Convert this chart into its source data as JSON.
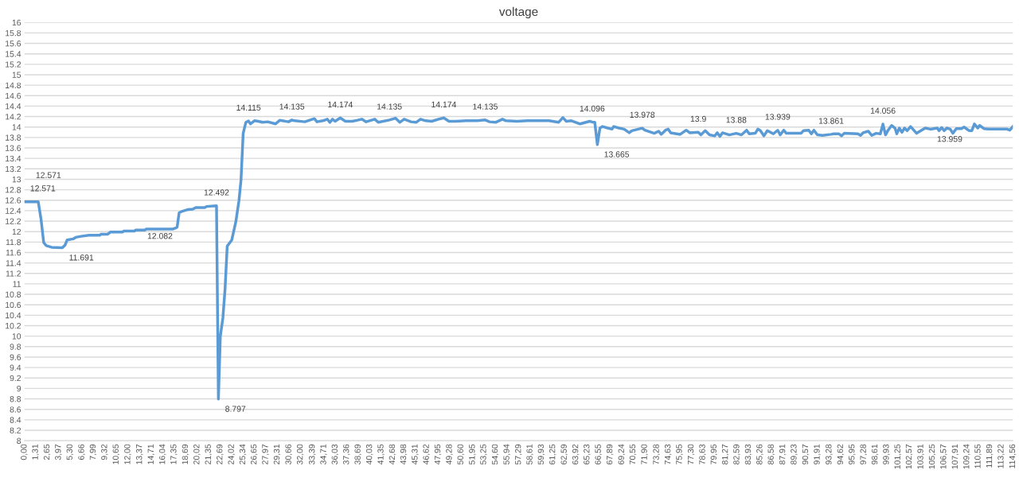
{
  "chart_data": {
    "type": "line",
    "title": "voltage",
    "x": [
      0,
      0.66,
      1.31,
      1.6,
      1.92,
      2.23,
      2.53,
      3.15,
      4.39,
      4.7,
      4.95,
      5.63,
      5.94,
      6.56,
      7.48,
      8.72,
      8.88,
      9.65,
      9.95,
      11.35,
      11.5,
      12.74,
      12.9,
      13.98,
      14.13,
      17.22,
      17.53,
      17.69,
      17.93,
      18.3,
      18.9,
      19.5,
      19.85,
      20.9,
      21.1,
      22.26,
      22.48,
      22.7,
      23.0,
      23.25,
      23.5,
      24.03,
      24.5,
      24.86,
      25.1,
      25.35,
      25.66,
      25.97,
      26.2,
      26.65,
      27.1,
      27.6,
      28.2,
      29.1,
      29.6,
      30.6,
      31.0,
      31.3,
      32.5,
      33.6,
      33.9,
      34.6,
      35.1,
      35.4,
      35.7,
      36.0,
      36.6,
      37.2,
      38.0,
      38.6,
      39.1,
      39.6,
      40.6,
      41.0,
      42.3,
      43.0,
      43.5,
      44.0,
      44.8,
      45.4,
      45.9,
      46.5,
      47.2,
      48.0,
      48.6,
      49.2,
      50.0,
      51.2,
      52.5,
      53.4,
      53.9,
      54.6,
      55.4,
      55.8,
      57.1,
      58.3,
      59.6,
      60.8,
      61.9,
      62.4,
      62.8,
      63.4,
      63.9,
      64.4,
      65.5,
      65.8,
      66.1,
      66.4,
      66.7,
      67.0,
      67.6,
      68.1,
      68.3,
      68.9,
      69.5,
      70.1,
      70.4,
      71.6,
      71.9,
      73.0,
      73.5,
      73.8,
      74.3,
      74.6,
      74.9,
      76.0,
      76.7,
      77.1,
      78.1,
      78.4,
      78.9,
      79.4,
      80.0,
      80.3,
      80.6,
      80.9,
      81.7,
      82.5,
      83.1,
      83.7,
      84.0,
      84.7,
      85.0,
      85.3,
      85.7,
      86.1,
      86.8,
      87.3,
      87.6,
      88.0,
      88.3,
      90.0,
      90.3,
      90.9,
      91.2,
      91.5,
      91.9,
      92.5,
      93.5,
      93.8,
      94.4,
      94.7,
      95.0,
      96.6,
      96.9,
      97.2,
      97.8,
      98.2,
      98.7,
      99.2,
      99.5,
      99.8,
      100.1,
      100.5,
      100.9,
      101.1,
      101.4,
      101.7,
      102.0,
      102.3,
      102.7,
      103.4,
      103.9,
      104.4,
      105.0,
      105.8,
      106.0,
      106.3,
      106.6,
      106.9,
      107.3,
      107.6,
      108.0,
      108.6,
      108.9,
      109.5,
      109.8,
      110.1,
      110.5,
      110.7,
      111.2,
      111.7,
      112.6,
      113.9,
      114.2,
      114.56
    ],
    "series": [
      {
        "color": "#5b9bd5",
        "values": [
          12.571,
          12.571,
          12.571,
          12.571,
          12.24,
          11.79,
          11.73,
          11.7,
          11.691,
          11.74,
          11.84,
          11.86,
          11.89,
          11.91,
          11.93,
          11.93,
          11.95,
          11.95,
          11.99,
          11.99,
          12.01,
          12.01,
          12.03,
          12.03,
          12.05,
          12.05,
          12.07,
          12.082,
          12.36,
          12.39,
          12.42,
          12.43,
          12.46,
          12.46,
          12.48,
          12.492,
          8.797,
          10.0,
          10.35,
          10.9,
          11.72,
          11.84,
          12.19,
          12.59,
          12.99,
          13.88,
          14.09,
          14.115,
          14.06,
          14.12,
          14.11,
          14.09,
          14.1,
          14.06,
          14.13,
          14.1,
          14.135,
          14.12,
          14.1,
          14.16,
          14.1,
          14.12,
          14.15,
          14.09,
          14.15,
          14.11,
          14.174,
          14.11,
          14.11,
          14.13,
          14.15,
          14.1,
          14.15,
          14.09,
          14.135,
          14.17,
          14.09,
          14.15,
          14.1,
          14.09,
          14.15,
          14.12,
          14.11,
          14.15,
          14.174,
          14.11,
          14.11,
          14.12,
          14.12,
          14.135,
          14.1,
          14.09,
          14.15,
          14.12,
          14.11,
          14.12,
          14.12,
          14.12,
          14.09,
          14.18,
          14.11,
          14.12,
          14.09,
          14.06,
          14.11,
          14.096,
          14.09,
          13.665,
          13.98,
          14.01,
          13.98,
          13.96,
          14.01,
          13.98,
          13.96,
          13.89,
          13.93,
          13.978,
          13.94,
          13.88,
          13.92,
          13.86,
          13.94,
          13.96,
          13.89,
          13.86,
          13.94,
          13.89,
          13.9,
          13.85,
          13.93,
          13.85,
          13.83,
          13.89,
          13.82,
          13.89,
          13.85,
          13.88,
          13.85,
          13.94,
          13.87,
          13.88,
          13.96,
          13.93,
          13.83,
          13.93,
          13.87,
          13.939,
          13.85,
          13.94,
          13.88,
          13.88,
          13.93,
          13.94,
          13.87,
          13.94,
          13.85,
          13.84,
          13.861,
          13.87,
          13.87,
          13.83,
          13.88,
          13.87,
          13.84,
          13.89,
          13.92,
          13.84,
          13.88,
          13.87,
          14.056,
          13.85,
          13.94,
          14.03,
          13.98,
          13.87,
          13.98,
          13.9,
          13.98,
          13.93,
          14.01,
          13.88,
          13.93,
          13.98,
          13.959,
          13.98,
          13.93,
          13.99,
          13.93,
          13.98,
          13.96,
          13.88,
          13.97,
          13.97,
          14.0,
          13.93,
          13.93,
          14.06,
          13.98,
          14.03,
          13.97,
          13.96,
          13.96,
          13.96,
          13.94,
          14.01
        ]
      }
    ],
    "annotations": [
      {
        "text": "12.571",
        "x": 0.66,
        "y": 12.571
      },
      {
        "text": "12.571",
        "x": 1.31,
        "y": 12.571
      },
      {
        "text": "11.691",
        "x": 4.39,
        "y": 11.691
      },
      {
        "text": "12.082",
        "x": 17.69,
        "y": 12.082
      },
      {
        "text": "12.492",
        "x": 22.26,
        "y": 12.492
      },
      {
        "text": "8.797",
        "x": 22.48,
        "y": 8.797
      },
      {
        "text": "14.115",
        "x": 25.97,
        "y": 14.115
      },
      {
        "text": "14.135",
        "x": 31.0,
        "y": 14.135
      },
      {
        "text": "14.174",
        "x": 36.6,
        "y": 14.174
      },
      {
        "text": "14.135",
        "x": 42.3,
        "y": 14.135
      },
      {
        "text": "14.174",
        "x": 48.6,
        "y": 14.174
      },
      {
        "text": "14.135",
        "x": 53.4,
        "y": 14.135
      },
      {
        "text": "14.096",
        "x": 65.8,
        "y": 14.096
      },
      {
        "text": "13.665",
        "x": 66.4,
        "y": 13.665
      },
      {
        "text": "13.978",
        "x": 71.6,
        "y": 13.978
      },
      {
        "text": "13.9",
        "x": 78.1,
        "y": 13.9
      },
      {
        "text": "13.88",
        "x": 82.5,
        "y": 13.88
      },
      {
        "text": "13.939",
        "x": 87.3,
        "y": 13.939
      },
      {
        "text": "13.861",
        "x": 93.5,
        "y": 13.861
      },
      {
        "text": "14.056",
        "x": 99.5,
        "y": 14.056
      },
      {
        "text": "13.959",
        "x": 105.0,
        "y": 13.959
      }
    ],
    "xlim": [
      0,
      114.56
    ],
    "xticks": [
      {
        "value": 0.0,
        "label": "0,00"
      },
      {
        "value": 1.31,
        "label": "1,31"
      },
      {
        "value": 2.65,
        "label": "2,65"
      },
      {
        "value": 3.97,
        "label": "3,97"
      },
      {
        "value": 5.3,
        "label": "5,30"
      },
      {
        "value": 6.66,
        "label": "6,66"
      },
      {
        "value": 7.99,
        "label": "7,99"
      },
      {
        "value": 9.32,
        "label": "9,32"
      },
      {
        "value": 10.65,
        "label": "10,65"
      },
      {
        "value": 12.0,
        "label": "12,00"
      },
      {
        "value": 13.37,
        "label": "13,37"
      },
      {
        "value": 14.71,
        "label": "14,71"
      },
      {
        "value": 16.04,
        "label": "16,04"
      },
      {
        "value": 17.35,
        "label": "17,35"
      },
      {
        "value": 18.69,
        "label": "18,69"
      },
      {
        "value": 20.02,
        "label": "20,02"
      },
      {
        "value": 21.35,
        "label": "21,35"
      },
      {
        "value": 22.69,
        "label": "22,69"
      },
      {
        "value": 24.02,
        "label": "24,02"
      },
      {
        "value": 25.34,
        "label": "25,34"
      },
      {
        "value": 26.65,
        "label": "26,65"
      },
      {
        "value": 27.97,
        "label": "27,97"
      },
      {
        "value": 29.31,
        "label": "29,31"
      },
      {
        "value": 30.66,
        "label": "30,66"
      },
      {
        "value": 32.0,
        "label": "32,00"
      },
      {
        "value": 33.39,
        "label": "33,39"
      },
      {
        "value": 34.71,
        "label": "34,71"
      },
      {
        "value": 36.03,
        "label": "36,03"
      },
      {
        "value": 37.36,
        "label": "37,36"
      },
      {
        "value": 38.69,
        "label": "38,69"
      },
      {
        "value": 40.03,
        "label": "40,03"
      },
      {
        "value": 41.35,
        "label": "41,35"
      },
      {
        "value": 42.68,
        "label": "42,68"
      },
      {
        "value": 43.98,
        "label": "43,98"
      },
      {
        "value": 45.31,
        "label": "45,31"
      },
      {
        "value": 46.62,
        "label": "46,62"
      },
      {
        "value": 47.95,
        "label": "47,95"
      },
      {
        "value": 49.28,
        "label": "49,28"
      },
      {
        "value": 50.6,
        "label": "50,60"
      },
      {
        "value": 51.95,
        "label": "51,95"
      },
      {
        "value": 53.25,
        "label": "53,25"
      },
      {
        "value": 54.6,
        "label": "54,60"
      },
      {
        "value": 55.94,
        "label": "55,94"
      },
      {
        "value": 57.29,
        "label": "57,29"
      },
      {
        "value": 58.61,
        "label": "58,61"
      },
      {
        "value": 59.93,
        "label": "59,93"
      },
      {
        "value": 61.25,
        "label": "61,25"
      },
      {
        "value": 62.59,
        "label": "62,59"
      },
      {
        "value": 63.92,
        "label": "63,92"
      },
      {
        "value": 65.23,
        "label": "65,23"
      },
      {
        "value": 66.55,
        "label": "66,55"
      },
      {
        "value": 67.89,
        "label": "67,89"
      },
      {
        "value": 69.24,
        "label": "69,24"
      },
      {
        "value": 70.55,
        "label": "70,55"
      },
      {
        "value": 71.9,
        "label": "71,90"
      },
      {
        "value": 73.28,
        "label": "73,28"
      },
      {
        "value": 74.63,
        "label": "74,63"
      },
      {
        "value": 75.95,
        "label": "75,95"
      },
      {
        "value": 77.3,
        "label": "77,30"
      },
      {
        "value": 78.63,
        "label": "78,63"
      },
      {
        "value": 79.95,
        "label": "79,95"
      },
      {
        "value": 81.27,
        "label": "81,27"
      },
      {
        "value": 82.59,
        "label": "82,59"
      },
      {
        "value": 83.93,
        "label": "83,93"
      },
      {
        "value": 85.26,
        "label": "85,26"
      },
      {
        "value": 86.58,
        "label": "86,58"
      },
      {
        "value": 87.91,
        "label": "87,91"
      },
      {
        "value": 89.23,
        "label": "89,23"
      },
      {
        "value": 90.57,
        "label": "90,57"
      },
      {
        "value": 91.91,
        "label": "91,91"
      },
      {
        "value": 93.28,
        "label": "93,28"
      },
      {
        "value": 94.62,
        "label": "94,62"
      },
      {
        "value": 95.95,
        "label": "95,95"
      },
      {
        "value": 97.28,
        "label": "97,28"
      },
      {
        "value": 98.61,
        "label": "98,61"
      },
      {
        "value": 99.93,
        "label": "99,93"
      },
      {
        "value": 101.25,
        "label": "101,25"
      },
      {
        "value": 102.57,
        "label": "102,57"
      },
      {
        "value": 103.91,
        "label": "103,91"
      },
      {
        "value": 105.25,
        "label": "105,25"
      },
      {
        "value": 106.57,
        "label": "106,57"
      },
      {
        "value": 107.91,
        "label": "107,91"
      },
      {
        "value": 109.24,
        "label": "109,24"
      },
      {
        "value": 110.55,
        "label": "110,55"
      },
      {
        "value": 111.89,
        "label": "111,89"
      },
      {
        "value": 113.22,
        "label": "113,22"
      },
      {
        "value": 114.56,
        "label": "114,56"
      }
    ],
    "ylim": [
      8,
      16
    ],
    "yticks": [
      8,
      8.2,
      8.4,
      8.6,
      8.8,
      9,
      9.2,
      9.4,
      9.6,
      9.8,
      10,
      10.2,
      10.4,
      10.6,
      10.8,
      11,
      11.2,
      11.4,
      11.6,
      11.8,
      12,
      12.2,
      12.4,
      12.6,
      12.8,
      13,
      13.2,
      13.4,
      13.6,
      13.8,
      14,
      14.2,
      14.4,
      14.6,
      14.8,
      15,
      15.2,
      15.4,
      15.6,
      15.8,
      16
    ],
    "grid": "y",
    "marker": "none",
    "line_style": "solid"
  }
}
